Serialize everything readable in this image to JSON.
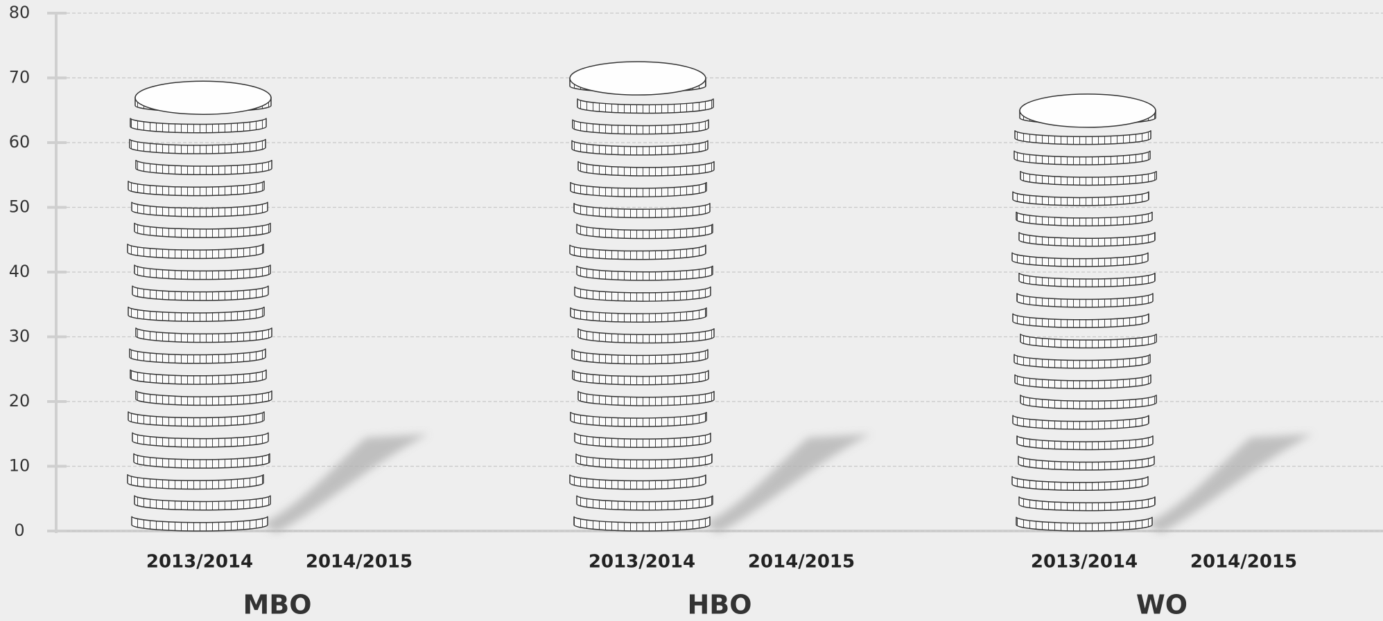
{
  "chart_data": {
    "type": "coin-stack",
    "groups": [
      {
        "name": "MBO",
        "categories": [
          "2013/2014",
          "2014/2015"
        ],
        "values": [
          68,
          null
        ]
      },
      {
        "name": "HBO",
        "categories": [
          "2013/2014",
          "2014/2015"
        ],
        "values": [
          71,
          null
        ]
      },
      {
        "name": "WO",
        "categories": [
          "2013/2014",
          "2014/2015"
        ],
        "values": [
          66,
          null
        ]
      }
    ],
    "ylim": [
      0,
      80
    ],
    "yticks": [
      0,
      10,
      20,
      30,
      40,
      50,
      60,
      70,
      80
    ],
    "grid": true
  }
}
